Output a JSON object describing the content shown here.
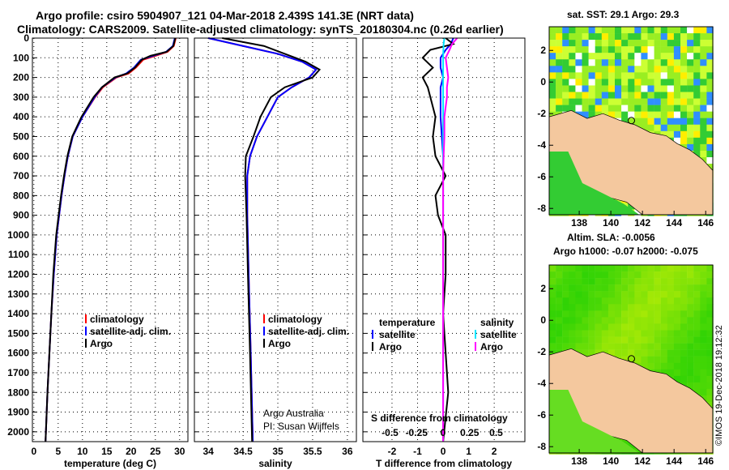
{
  "title": {
    "line1": "Argo profile: csiro 5904907_121 04-Mar-2018 2.439S 141.3E (NRT data)",
    "line2": "Climatology: CARS2009. Satellite-adjusted climatology: synTS_20180304.nc (0.26d earlier)"
  },
  "colors": {
    "clim": "#ff0000",
    "sat": "#0000ff",
    "argo": "#000000",
    "sat_s": "#00e5ff",
    "argo_s": "#ff00ff",
    "land": "#f4c89e"
  },
  "chart_data": [
    {
      "type": "line",
      "name": "temperature",
      "xlabel": "temperature (deg C)",
      "xlim": [
        -0.3,
        31.7
      ],
      "ylim": [
        2050,
        0
      ],
      "xticks": [
        0,
        5,
        10,
        15,
        20,
        25,
        30
      ],
      "yticks": [
        0,
        100,
        200,
        300,
        400,
        500,
        600,
        700,
        800,
        900,
        1000,
        1100,
        1200,
        1300,
        1400,
        1500,
        1600,
        1700,
        1800,
        1900,
        2000
      ],
      "legend": [
        "climatology",
        "satellite-adj. clim.",
        "Argo"
      ],
      "depth": [
        0,
        40,
        70,
        90,
        110,
        150,
        180,
        200,
        250,
        300,
        400,
        500,
        600,
        700,
        800,
        900,
        1000,
        1200,
        1400,
        1600,
        1800,
        2050
      ],
      "series": [
        {
          "name": "climatology",
          "color": "clim",
          "values": [
            29.2,
            28.8,
            27.5,
            25,
            22.5,
            21,
            19.5,
            17,
            14.2,
            12.6,
            10,
            8,
            7,
            6.3,
            5.7,
            5.2,
            4.7,
            4.1,
            3.6,
            3.2,
            2.8,
            2.4
          ]
        },
        {
          "name": "satellite-adj. clim.",
          "color": "sat",
          "values": [
            29.0,
            28.6,
            27.2,
            24.5,
            22,
            20.6,
            19,
            16.8,
            14,
            12.5,
            10,
            8,
            7,
            6.3,
            5.7,
            5.2,
            4.7,
            4.1,
            3.6,
            3.2,
            2.8,
            2.4
          ]
        },
        {
          "name": "Argo",
          "color": "argo",
          "values": [
            29.1,
            28.7,
            27.3,
            24,
            22.2,
            20.8,
            19.2,
            16.6,
            14,
            12.3,
            9.8,
            7.9,
            6.9,
            6.2,
            5.6,
            5.1,
            4.6,
            4.0,
            3.6,
            3.2,
            2.8,
            2.4
          ]
        }
      ]
    },
    {
      "type": "line",
      "name": "salinity",
      "xlabel": "salinity",
      "xlim": [
        33.8,
        36.13
      ],
      "ylim": [
        2050,
        0
      ],
      "xticks": [
        34,
        34.5,
        35,
        35.5,
        36
      ],
      "legend": [
        "climatology",
        "satellite-adj. clim.",
        "Argo"
      ],
      "annotation": [
        "Argo Australia",
        "PI: Susan Wijffels"
      ],
      "depth": [
        0,
        40,
        80,
        120,
        160,
        200,
        250,
        300,
        400,
        500,
        600,
        700,
        900,
        1200,
        1600,
        2050
      ],
      "series": [
        {
          "name": "climatology",
          "color": "clim",
          "values": [
            34.0,
            34.5,
            35.0,
            35.35,
            35.55,
            35.45,
            35.2,
            35.0,
            34.85,
            34.7,
            34.6,
            34.56,
            34.56,
            34.58,
            34.61,
            34.64
          ]
        },
        {
          "name": "satellite-adj. clim.",
          "color": "sat",
          "values": [
            34.0,
            34.5,
            35.0,
            35.35,
            35.55,
            35.45,
            35.2,
            35.0,
            34.85,
            34.7,
            34.6,
            34.56,
            34.56,
            34.58,
            34.61,
            34.64
          ]
        },
        {
          "name": "Argo",
          "color": "argo",
          "values": [
            34.2,
            34.8,
            35.1,
            35.4,
            35.6,
            35.5,
            35.1,
            34.9,
            34.75,
            34.65,
            34.54,
            34.53,
            34.55,
            34.57,
            34.6,
            34.63
          ]
        }
      ]
    },
    {
      "type": "line",
      "name": "difference",
      "xlabel": "T difference from climatology",
      "xlabel2": "S difference from climatology",
      "xlim": [
        -3.14,
        3.2
      ],
      "xticks": [
        -2,
        -1,
        0,
        1,
        2
      ],
      "sticks": [
        "-0.5",
        "-0.25",
        "0",
        "0.25",
        "0.5"
      ],
      "sticks_values": [
        -0.5,
        -0.25,
        0,
        0.25,
        0.5
      ],
      "legend_t": [
        "temperature",
        "satellite",
        "Argo"
      ],
      "legend_s": [
        "salinity",
        "satellite",
        "Argo"
      ],
      "depth": [
        0,
        30,
        60,
        100,
        150,
        200,
        250,
        300,
        400,
        500,
        600,
        700,
        800,
        900,
        1000,
        1200,
        1400,
        1600,
        1800,
        2050
      ],
      "series": [
        {
          "name": "T satellite",
          "color": "sat",
          "values": [
            0.4,
            0.3,
            0.1,
            -0.1,
            -0.1,
            0,
            -0.1,
            -0.1,
            -0.1,
            -0.05,
            0,
            0,
            0,
            0,
            0,
            0,
            0,
            0,
            0,
            0
          ]
        },
        {
          "name": "T Argo",
          "color": "argo",
          "values": [
            0.1,
            0.4,
            -0.5,
            -0.8,
            -0.4,
            -0.8,
            -0.6,
            -0.5,
            -0.3,
            -0.4,
            -0.3,
            0.1,
            -0.3,
            -0.2,
            0.1,
            0.1,
            0,
            0.1,
            0.2,
            0
          ]
        },
        {
          "name": "S satellite",
          "color": "sat_s",
          "values": [
            0.05,
            0.02,
            0.01,
            0,
            0,
            0,
            0,
            0,
            0,
            0,
            0,
            0,
            0,
            0,
            0,
            0,
            0,
            0,
            0,
            0
          ]
        },
        {
          "name": "S Argo",
          "color": "argo_s",
          "values": [
            0.55,
            0.35,
            0.25,
            0.1,
            0.15,
            0.2,
            0.15,
            0.15,
            0.05,
            0.05,
            0.02,
            0,
            0,
            0,
            0,
            0,
            0,
            0,
            0,
            0
          ]
        }
      ]
    }
  ],
  "maps": [
    {
      "title": "sat. SST: 29.1 Argo: 29.3",
      "xticks": [
        "138",
        "140",
        "142",
        "144",
        "146"
      ],
      "yticks": [
        "2",
        "0",
        "-2",
        "-4",
        "-6",
        "-8"
      ]
    },
    {
      "title1": "Altim. SLA: -0.0056",
      "title2": "Argo h1000: -0.07 h2000: -0.075",
      "xticks": [
        "138",
        "140",
        "142",
        "144",
        "146"
      ],
      "yticks": [
        "2",
        "0",
        "-2",
        "-4",
        "-6",
        "-8"
      ]
    }
  ],
  "credit": "©IMOS 19-Dec-2018 19:12:32"
}
